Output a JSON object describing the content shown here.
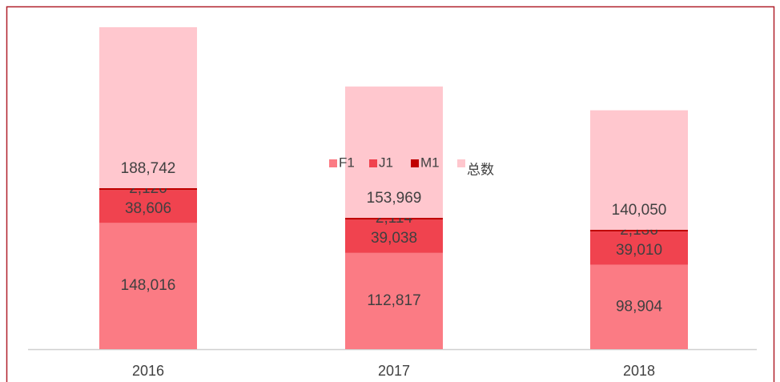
{
  "chart_data": {
    "type": "stacked_bar",
    "categories": [
      "2016",
      "2017",
      "2018"
    ],
    "series": [
      {
        "name": "F1",
        "color": "#fb7b84",
        "values": [
          148016,
          112817,
          98904
        ],
        "value_labels": [
          "148,016",
          "112,817",
          "98,904"
        ]
      },
      {
        "name": "J1",
        "color": "#f0434f",
        "values": [
          38606,
          39038,
          39010
        ],
        "value_labels": [
          "38,606",
          "39,038",
          "39,010"
        ]
      },
      {
        "name": "M1",
        "color": "#c00000",
        "values": [
          2120,
          2114,
          2136
        ],
        "value_labels": [
          "2,120",
          "2,114",
          "2,136"
        ]
      },
      {
        "name": "总数",
        "color": "#ffc7ce",
        "values": [
          188742,
          153969,
          140050
        ],
        "value_labels": [
          "188,742",
          "153,969",
          "140,050"
        ]
      }
    ]
  }
}
